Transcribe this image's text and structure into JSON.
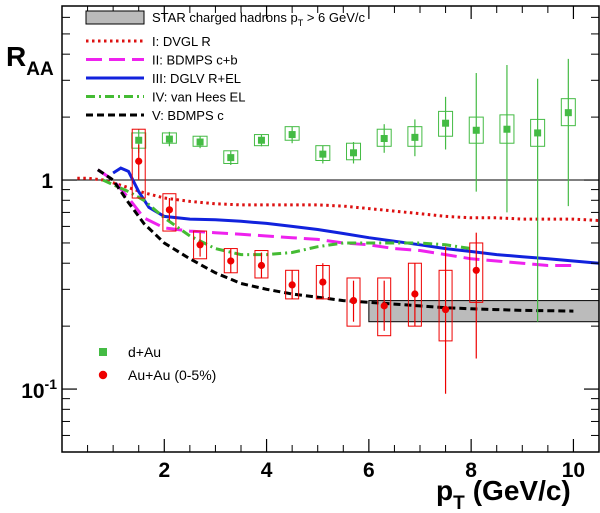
{
  "chart_data": {
    "type": "scatter",
    "title": "",
    "xlabel_main": "p",
    "xlabel_sub": "T",
    "xlabel_unit": "(GeV/c)",
    "ylabel_main": "R",
    "ylabel_sub": "AA",
    "x_scale": "linear",
    "y_scale": "log",
    "xlim": [
      0,
      10.5
    ],
    "ylim": [
      0.05,
      6.8
    ],
    "x_ticks": [
      2,
      4,
      6,
      8,
      10
    ],
    "x_tick_labels": [
      "2",
      "4",
      "6",
      "8",
      "10"
    ],
    "y_ticks": [
      0.1,
      1
    ],
    "y_tick_labels": [
      {
        "base": "10",
        "exp": "-1"
      },
      {
        "base": "1",
        "exp": ""
      }
    ],
    "reference_line_y": 1.0,
    "legend_top": {
      "band": {
        "label_main": "STAR charged hadrons p",
        "label_sub": "T",
        "label_rest": " > 6 GeV/c"
      },
      "entries": [
        {
          "label": "I: DVGL R",
          "color": "#dd1111",
          "style": "dotted"
        },
        {
          "label": "II: BDMPS c+b",
          "color": "#ee22ee",
          "style": "longdash"
        },
        {
          "label": "III: DGLV R+EL",
          "color": "#1122dd",
          "style": "solid"
        },
        {
          "label": "IV: van Hees EL",
          "color": "#44bb33",
          "style": "dashdot"
        },
        {
          "label": "V: BDMPS c",
          "color": "#000000",
          "style": "dashed"
        }
      ]
    },
    "legend_bottom": [
      {
        "label": "d+Au",
        "color": "#44bb44",
        "marker": "square"
      },
      {
        "label": "Au+Au (0-5%)",
        "color": "#ee0000",
        "marker": "circle"
      }
    ],
    "star_band": {
      "x": [
        6.0,
        10.5
      ],
      "y": [
        0.21,
        0.265
      ],
      "color": "#bbbbbb"
    },
    "series": [
      {
        "name": "d+Au",
        "color": "#44bb44",
        "marker": "square",
        "x": [
          1.5,
          2.1,
          2.7,
          3.3,
          3.9,
          4.5,
          5.1,
          5.7,
          6.3,
          6.9,
          7.5,
          8.1,
          8.7,
          9.3,
          9.9
        ],
        "y": [
          1.55,
          1.57,
          1.52,
          1.28,
          1.55,
          1.65,
          1.33,
          1.35,
          1.58,
          1.6,
          1.87,
          1.73,
          1.75,
          1.68,
          2.1
        ],
        "stat_err": [
          [
            1.35,
            1.75
          ],
          [
            1.45,
            1.7
          ],
          [
            1.42,
            1.62
          ],
          [
            1.18,
            1.38
          ],
          [
            1.45,
            1.65
          ],
          [
            1.5,
            1.8
          ],
          [
            1.2,
            1.46
          ],
          [
            1.2,
            1.52
          ],
          [
            1.35,
            1.85
          ],
          [
            1.3,
            1.95
          ],
          [
            1.4,
            2.5
          ],
          [
            0.88,
            3.25
          ],
          [
            0.7,
            3.55
          ],
          [
            0.21,
            3.05
          ],
          [
            0.75,
            3.8
          ]
        ],
        "sys_box": [
          [
            1.42,
            1.68
          ],
          [
            1.5,
            1.68
          ],
          [
            1.45,
            1.62
          ],
          [
            1.2,
            1.38
          ],
          [
            1.46,
            1.65
          ],
          [
            1.55,
            1.8
          ],
          [
            1.24,
            1.46
          ],
          [
            1.25,
            1.5
          ],
          [
            1.45,
            1.75
          ],
          [
            1.45,
            1.8
          ],
          [
            1.62,
            2.13
          ],
          [
            1.5,
            2.0
          ],
          [
            1.5,
            2.05
          ],
          [
            1.45,
            1.95
          ],
          [
            1.82,
            2.45
          ]
        ]
      },
      {
        "name": "Au+Au (0-5%)",
        "color": "#ee0000",
        "marker": "circle",
        "x": [
          1.5,
          2.1,
          2.7,
          3.3,
          3.9,
          4.5,
          5.1,
          5.7,
          6.3,
          6.9,
          7.5,
          8.1
        ],
        "y": [
          1.23,
          0.72,
          0.49,
          0.41,
          0.39,
          0.315,
          0.325,
          0.265,
          0.25,
          0.285,
          0.24,
          0.37
        ],
        "stat_err": [
          [
            1.0,
            1.48
          ],
          [
            0.64,
            0.82
          ],
          [
            0.43,
            0.56
          ],
          [
            0.36,
            0.47
          ],
          [
            0.34,
            0.45
          ],
          [
            0.27,
            0.37
          ],
          [
            0.27,
            0.4
          ],
          [
            0.21,
            0.33
          ],
          [
            0.19,
            0.33
          ],
          [
            0.2,
            0.4
          ],
          [
            0.095,
            0.48
          ],
          [
            0.14,
            0.56
          ]
        ],
        "sys_box": [
          [
            0.82,
            1.75
          ],
          [
            0.57,
            0.86
          ],
          [
            0.42,
            0.57
          ],
          [
            0.36,
            0.47
          ],
          [
            0.34,
            0.46
          ],
          [
            0.27,
            0.37
          ],
          [
            0.27,
            0.39
          ],
          [
            0.2,
            0.34
          ],
          [
            0.18,
            0.34
          ],
          [
            0.2,
            0.4
          ],
          [
            0.17,
            0.37
          ],
          [
            0.26,
            0.5
          ]
        ]
      }
    ],
    "curves": [
      {
        "name": "I: DVGL R",
        "color": "#dd1111",
        "style": "dotted",
        "x": [
          0.3,
          0.5,
          0.8,
          1.0,
          1.3,
          1.6,
          2.0,
          2.5,
          3.0,
          3.5,
          4.0,
          4.5,
          5.0,
          5.5,
          6.0,
          6.5,
          7.0,
          7.5,
          8.0,
          8.5,
          9.0,
          9.5,
          10.0,
          10.5
        ],
        "y": [
          1.02,
          1.02,
          1.0,
          0.97,
          0.92,
          0.87,
          0.82,
          0.79,
          0.77,
          0.76,
          0.76,
          0.76,
          0.76,
          0.75,
          0.73,
          0.71,
          0.69,
          0.67,
          0.66,
          0.66,
          0.65,
          0.65,
          0.65,
          0.64
        ]
      },
      {
        "name": "II: BDMPS c+b",
        "color": "#ee22ee",
        "style": "longdash",
        "x": [
          0.7,
          1.0,
          1.3,
          1.6,
          2.0,
          2.5,
          3.0,
          3.5,
          4.0,
          4.5,
          5.0,
          5.5,
          6.0,
          6.5,
          7.0,
          7.5,
          8.0,
          8.5,
          9.0,
          9.5,
          10.0
        ],
        "y": [
          1.12,
          1.0,
          0.82,
          0.66,
          0.59,
          0.57,
          0.56,
          0.55,
          0.54,
          0.53,
          0.52,
          0.5,
          0.49,
          0.47,
          0.46,
          0.44,
          0.42,
          0.41,
          0.4,
          0.39,
          0.39
        ]
      },
      {
        "name": "III: DGLV R+EL",
        "color": "#1122dd",
        "style": "solid",
        "x": [
          1.0,
          1.15,
          1.3,
          1.5,
          1.7,
          2.0,
          2.5,
          3.0,
          3.5,
          4.0,
          4.5,
          5.0,
          5.5,
          6.0,
          6.5,
          7.0,
          7.5,
          8.0,
          8.5,
          9.0,
          9.5,
          10.0,
          10.5
        ],
        "y": [
          1.08,
          1.14,
          1.1,
          0.88,
          0.74,
          0.67,
          0.65,
          0.645,
          0.635,
          0.62,
          0.6,
          0.58,
          0.555,
          0.53,
          0.51,
          0.49,
          0.47,
          0.455,
          0.44,
          0.43,
          0.42,
          0.41,
          0.4
        ]
      },
      {
        "name": "IV: van Hees EL",
        "color": "#44bb33",
        "style": "dashdot",
        "x": [
          0.8,
          1.0,
          1.3,
          1.6,
          2.0,
          2.5,
          3.0,
          3.5,
          4.0,
          4.5,
          5.0,
          5.5,
          6.0,
          6.5,
          7.0,
          7.5,
          8.0
        ],
        "y": [
          1.0,
          0.95,
          0.88,
          0.8,
          0.66,
          0.54,
          0.47,
          0.44,
          0.44,
          0.45,
          0.48,
          0.5,
          0.5,
          0.5,
          0.5,
          0.49,
          0.47
        ]
      },
      {
        "name": "V: BDMPS c",
        "color": "#000000",
        "style": "dashed",
        "x": [
          0.7,
          1.0,
          1.3,
          1.6,
          2.0,
          2.5,
          3.0,
          3.5,
          4.0,
          4.5,
          5.0,
          5.5,
          6.0,
          6.5,
          7.0,
          7.5,
          8.0,
          8.5,
          9.0,
          9.5,
          10.0
        ],
        "y": [
          1.12,
          1.0,
          0.78,
          0.62,
          0.5,
          0.42,
          0.36,
          0.32,
          0.3,
          0.285,
          0.275,
          0.265,
          0.26,
          0.255,
          0.25,
          0.245,
          0.242,
          0.24,
          0.238,
          0.237,
          0.236
        ]
      }
    ]
  }
}
